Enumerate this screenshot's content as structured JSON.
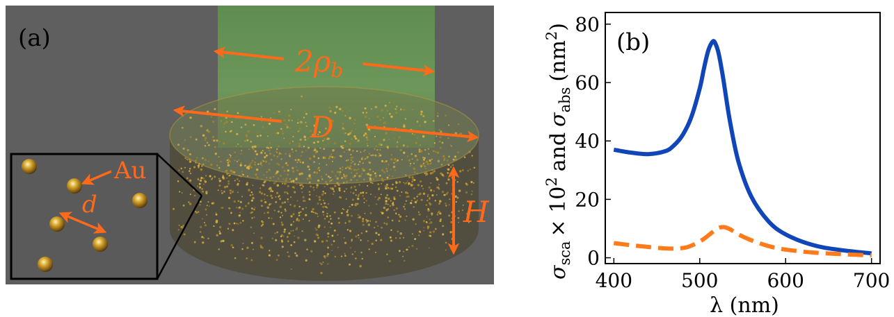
{
  "panel_a": {
    "label": "(a)",
    "beam_label": "2ρ",
    "beam_sub": "b",
    "diameter_label": "D",
    "height_label": "H",
    "particle_label": "Au",
    "distance_label": "d",
    "colors": {
      "arrow": "#ff6a1a",
      "background": "#5f5f5f",
      "beam": "#6a9a5a",
      "particle": "#c89a2a"
    }
  },
  "panel_b": {
    "label": "(b)",
    "chart_data": {
      "type": "line",
      "xlabel": "λ (nm)",
      "ylabel_parts": {
        "sigma": "σ",
        "sca": "sca",
        "times": "× 10",
        "exp": "2",
        "and": "and",
        "abs": "abs",
        "unit_open": "(nm",
        "unit_close": ")"
      },
      "xlim": [
        390,
        710
      ],
      "ylim": [
        -2,
        84
      ],
      "xticks": [
        400,
        500,
        600,
        700
      ],
      "yticks": [
        0,
        20,
        40,
        60,
        80
      ],
      "grid": false,
      "series": [
        {
          "color": "#1046b8",
          "dash": "solid",
          "x": [
            400,
            420,
            440,
            460,
            470,
            480,
            490,
            500,
            505,
            510,
            515,
            518,
            522,
            527,
            535,
            545,
            560,
            580,
            600,
            630,
            660,
            700
          ],
          "y": [
            37,
            36,
            35.5,
            36.5,
            38.5,
            42,
            48,
            58,
            65,
            71,
            74,
            73.5,
            70,
            62,
            47,
            33,
            21,
            12.5,
            8,
            4.5,
            2.8,
            1.5
          ]
        },
        {
          "color": "#ff7a1a",
          "dash": "dashed",
          "x": [
            400,
            420,
            440,
            460,
            475,
            485,
            495,
            505,
            515,
            522,
            528,
            535,
            545,
            560,
            580,
            600,
            640,
            700
          ],
          "y": [
            5,
            4.3,
            3.7,
            3.2,
            3.2,
            3.6,
            4.8,
            6.5,
            8.8,
            10.2,
            10.5,
            9.8,
            8,
            6,
            4,
            2.8,
            1.6,
            0.8
          ]
        }
      ]
    }
  }
}
